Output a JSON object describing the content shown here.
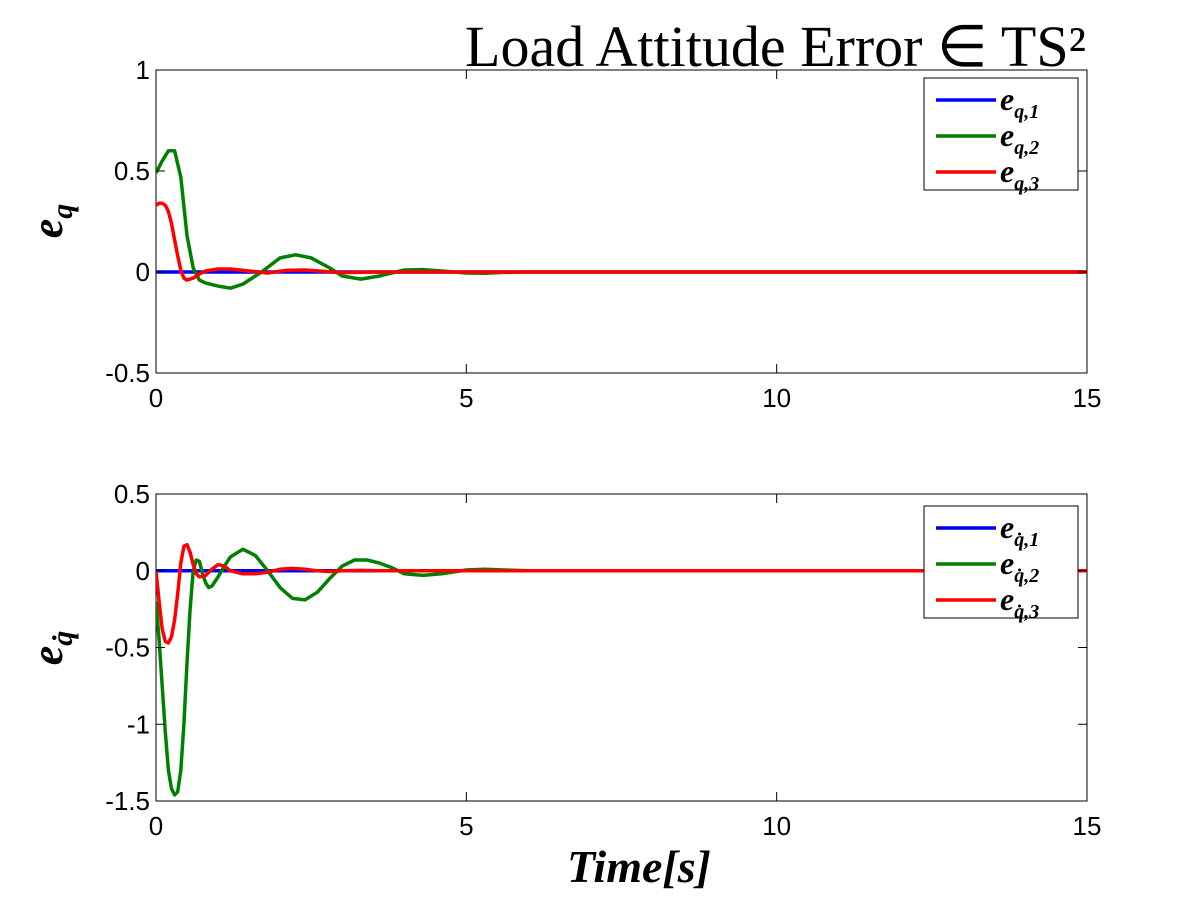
{
  "title": "Load Attitude Error ∈ TS²",
  "xlabel": "Time[s]",
  "colors": {
    "s1": "#0000ff",
    "s2": "#008000",
    "s3": "#ff0000"
  },
  "chart_data": [
    {
      "type": "line",
      "ylabel": "e_q",
      "xlim": [
        0,
        15
      ],
      "ylim": [
        -0.5,
        1
      ],
      "xticks": [
        "0",
        "5",
        "10",
        "15"
      ],
      "yticks": [
        "-0.5",
        "0",
        "0.5",
        "1"
      ],
      "legend_placement": "top-right",
      "series": [
        {
          "name": "e_q,1",
          "color": "#0000ff",
          "x": [
            0,
            0.5,
            1,
            2,
            3,
            4,
            5,
            15
          ],
          "y": [
            0,
            0,
            0,
            0,
            0,
            0,
            0,
            0
          ]
        },
        {
          "name": "e_q,2",
          "color": "#008000",
          "x": [
            0,
            0.1,
            0.2,
            0.3,
            0.4,
            0.5,
            0.6,
            0.7,
            0.8,
            1.0,
            1.2,
            1.4,
            1.7,
            2.0,
            2.25,
            2.5,
            2.8,
            3.0,
            3.3,
            3.6,
            4.0,
            4.3,
            4.6,
            5.0,
            5.3,
            5.6,
            6.0,
            15
          ],
          "y": [
            0.49,
            0.55,
            0.6,
            0.6,
            0.47,
            0.18,
            0.02,
            -0.04,
            -0.055,
            -0.07,
            -0.08,
            -0.06,
            0.0,
            0.07,
            0.085,
            0.07,
            0.02,
            -0.02,
            -0.035,
            -0.02,
            0.01,
            0.012,
            0.005,
            -0.005,
            -0.006,
            -0.002,
            0.0,
            0.0
          ]
        },
        {
          "name": "e_q,3",
          "color": "#ff0000",
          "x": [
            0,
            0.05,
            0.1,
            0.15,
            0.2,
            0.25,
            0.3,
            0.35,
            0.4,
            0.45,
            0.5,
            0.6,
            0.7,
            0.8,
            1.0,
            1.2,
            1.5,
            1.8,
            2.1,
            2.4,
            2.7,
            3.0,
            3.5,
            4.0,
            15
          ],
          "y": [
            0.33,
            0.34,
            0.34,
            0.33,
            0.3,
            0.24,
            0.16,
            0.08,
            0.01,
            -0.03,
            -0.04,
            -0.03,
            -0.01,
            0.005,
            0.015,
            0.015,
            0.005,
            -0.005,
            0.008,
            0.01,
            0.003,
            -0.003,
            0.0,
            0.0,
            0.0
          ]
        }
      ]
    },
    {
      "type": "line",
      "ylabel": "e_q̇",
      "xlim": [
        0,
        15
      ],
      "ylim": [
        -1.5,
        0.5
      ],
      "xticks": [
        "0",
        "5",
        "10",
        "15"
      ],
      "yticks": [
        "-1.5",
        "-1",
        "-0.5",
        "0",
        "0.5"
      ],
      "legend_placement": "top-right",
      "series": [
        {
          "name": "e_q̇,1",
          "color": "#0000ff",
          "x": [
            0,
            0.5,
            1,
            2,
            3,
            4,
            5,
            15
          ],
          "y": [
            0,
            0,
            0,
            0,
            0,
            0,
            0,
            0
          ]
        },
        {
          "name": "e_q̇,2",
          "color": "#008000",
          "x": [
            0,
            0.05,
            0.1,
            0.15,
            0.2,
            0.25,
            0.3,
            0.35,
            0.4,
            0.45,
            0.5,
            0.55,
            0.6,
            0.65,
            0.7,
            0.75,
            0.8,
            0.85,
            0.9,
            1.0,
            1.1,
            1.2,
            1.4,
            1.6,
            1.8,
            2.0,
            2.2,
            2.4,
            2.6,
            2.8,
            3.0,
            3.2,
            3.4,
            3.6,
            3.8,
            4.0,
            4.3,
            4.6,
            5.0,
            5.3,
            5.6,
            6.0,
            15
          ],
          "y": [
            -0.2,
            -0.45,
            -0.75,
            -1.05,
            -1.3,
            -1.42,
            -1.46,
            -1.44,
            -1.3,
            -1.0,
            -0.6,
            -0.25,
            0.0,
            0.07,
            0.06,
            -0.02,
            -0.08,
            -0.11,
            -0.1,
            -0.04,
            0.03,
            0.09,
            0.14,
            0.1,
            0.0,
            -0.11,
            -0.18,
            -0.19,
            -0.14,
            -0.05,
            0.03,
            0.07,
            0.07,
            0.05,
            0.02,
            -0.02,
            -0.03,
            -0.02,
            0.005,
            0.01,
            0.005,
            0.0,
            0.0
          ]
        },
        {
          "name": "e_q̇,3",
          "color": "#ff0000",
          "x": [
            0,
            0.05,
            0.1,
            0.15,
            0.2,
            0.25,
            0.3,
            0.35,
            0.4,
            0.45,
            0.5,
            0.55,
            0.6,
            0.65,
            0.7,
            0.8,
            0.9,
            1.0,
            1.1,
            1.2,
            1.4,
            1.6,
            1.8,
            2.0,
            2.2,
            2.4,
            2.6,
            2.8,
            3.0,
            3.3,
            3.6,
            4.0,
            15
          ],
          "y": [
            0,
            -0.2,
            -0.38,
            -0.46,
            -0.47,
            -0.43,
            -0.32,
            -0.15,
            0.05,
            0.16,
            0.17,
            0.12,
            0.04,
            -0.02,
            -0.04,
            -0.03,
            0.01,
            0.04,
            0.03,
            0.0,
            -0.02,
            -0.02,
            -0.01,
            0.01,
            0.015,
            0.01,
            0.0,
            -0.005,
            0.0,
            0.002,
            0.0,
            0.0,
            0.0
          ]
        }
      ]
    }
  ]
}
